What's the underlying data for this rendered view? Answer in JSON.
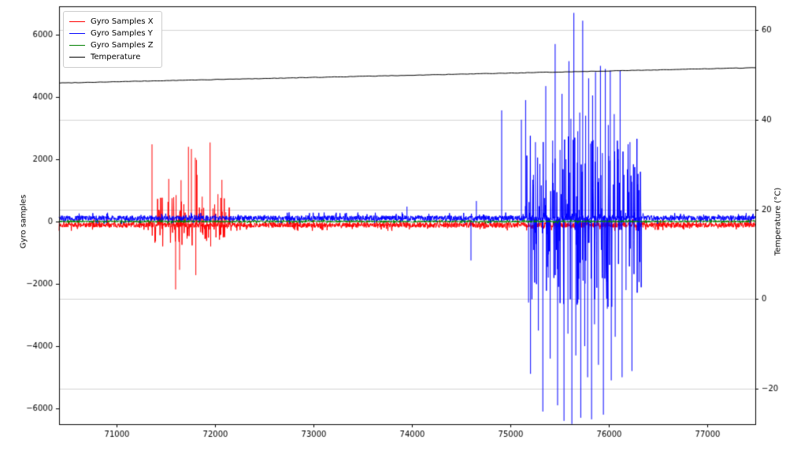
{
  "figure": {
    "background": "#ffffff",
    "grid_color": "#d4d4d4",
    "tick_color": "#000000",
    "spine_color": "#000000"
  },
  "legend": {
    "position": "upper left",
    "entries": [
      {
        "label": "Gyro Samples X",
        "color": "#ff0000"
      },
      {
        "label": "Gyro Samples Y",
        "color": "#0000ff"
      },
      {
        "label": "Gyro Samples Z",
        "color": "#008000"
      },
      {
        "label": "Temperature",
        "color": "#000000"
      }
    ]
  },
  "chart_data": {
    "type": "line",
    "title": "",
    "xlabel": "",
    "ylabel_left": "Gyro samples",
    "ylabel_right": "Temperature (°C)",
    "xlim": [
      70416,
      77488
    ],
    "ylim_left": [
      -6506,
      6911
    ],
    "ylim_right": [
      -27.9,
      65.3
    ],
    "x_ticks": [
      71000,
      72000,
      73000,
      74000,
      75000,
      76000,
      77000
    ],
    "left_ticks": [
      -6000,
      -4000,
      -2000,
      0,
      2000,
      4000,
      6000
    ],
    "right_ticks": [
      -20,
      0,
      20,
      40,
      60
    ],
    "grid": {
      "orientation": "horizontal",
      "on_axis": "right"
    },
    "legend_position": "upper left",
    "series": [
      {
        "name": "Gyro Samples X",
        "color": "#ff0000",
        "axis": "left",
        "noise": {
          "center": -110,
          "amp": 110
        },
        "burst": {
          "range": [
            71350,
            72150
          ],
          "prob": 0.22,
          "amp": [
            150,
            800
          ]
        },
        "spikes": [
          [
            71360,
            2480
          ],
          [
            71440,
            330
          ],
          [
            71530,
            1370
          ],
          [
            71600,
            -2180
          ],
          [
            71605,
            850
          ],
          [
            71640,
            -1550
          ],
          [
            71655,
            1330
          ],
          [
            71730,
            2400
          ],
          [
            71760,
            2330
          ],
          [
            71800,
            2050
          ],
          [
            71805,
            -1720
          ],
          [
            71812,
            1980
          ],
          [
            71818,
            1500
          ],
          [
            71870,
            800
          ],
          [
            71950,
            2540
          ],
          [
            71956,
            -800
          ],
          [
            72030,
            880
          ],
          [
            72060,
            -420
          ],
          [
            72070,
            1340
          ],
          [
            72110,
            300
          ]
        ]
      },
      {
        "name": "Gyro Samples Y",
        "color": "#0000ff",
        "axis": "left",
        "noise": {
          "center": 110,
          "amp": 110
        },
        "burst": {
          "range": [
            75150,
            76350
          ],
          "prob": 0.3,
          "amp": [
            250,
            2800
          ]
        },
        "spikes": [
          [
            73950,
            480
          ],
          [
            74600,
            -1250
          ],
          [
            74655,
            660
          ],
          [
            74912,
            3570
          ],
          [
            75112,
            3270
          ],
          [
            75155,
            3900
          ],
          [
            75185,
            -2600
          ],
          [
            75205,
            -4890
          ],
          [
            75235,
            1500
          ],
          [
            75255,
            2550
          ],
          [
            75285,
            -3500
          ],
          [
            75300,
            1850
          ],
          [
            75330,
            -6100
          ],
          [
            75360,
            4350
          ],
          [
            75385,
            -1800
          ],
          [
            75405,
            -4400
          ],
          [
            75430,
            2600
          ],
          [
            75455,
            5700
          ],
          [
            75480,
            -5900
          ],
          [
            75505,
            2300
          ],
          [
            75525,
            4100
          ],
          [
            75545,
            -6400
          ],
          [
            75565,
            2000
          ],
          [
            75585,
            -3600
          ],
          [
            75595,
            5150
          ],
          [
            75615,
            3300
          ],
          [
            75625,
            -6500
          ],
          [
            75645,
            6700
          ],
          [
            75665,
            -4300
          ],
          [
            75685,
            2900
          ],
          [
            75695,
            -2500
          ],
          [
            75705,
            3500
          ],
          [
            75715,
            -6300
          ],
          [
            75735,
            6450
          ],
          [
            75755,
            -4000
          ],
          [
            75765,
            3400
          ],
          [
            75785,
            -5000
          ],
          [
            75795,
            4600
          ],
          [
            75815,
            2500
          ],
          [
            75825,
            -6350
          ],
          [
            75835,
            4050
          ],
          [
            75855,
            -3300
          ],
          [
            75865,
            4800
          ],
          [
            75885,
            2400
          ],
          [
            75895,
            -4600
          ],
          [
            75915,
            5000
          ],
          [
            75935,
            2200
          ],
          [
            75945,
            -6200
          ],
          [
            75965,
            4900
          ],
          [
            75985,
            -2800
          ],
          [
            75995,
            3100
          ],
          [
            76015,
            4850
          ],
          [
            76025,
            -5100
          ],
          [
            76055,
            3450
          ],
          [
            76065,
            -3700
          ],
          [
            76095,
            2000
          ],
          [
            76115,
            4850
          ],
          [
            76135,
            -5000
          ],
          [
            76155,
            1500
          ],
          [
            76175,
            -2200
          ],
          [
            76215,
            2550
          ],
          [
            76235,
            -4800
          ],
          [
            76295,
            1200
          ],
          [
            76315,
            -1300
          ]
        ]
      },
      {
        "name": "Gyro Samples Z",
        "color": "#008000",
        "axis": "left",
        "noise": {
          "center": 2,
          "amp": 38
        },
        "spikes": []
      },
      {
        "name": "Temperature",
        "color": "#000000",
        "axis": "right",
        "line": {
          "x": [
            70416,
            77488
          ],
          "y": [
            48.2,
            51.6
          ]
        },
        "noise_amp": 0.05
      }
    ]
  }
}
